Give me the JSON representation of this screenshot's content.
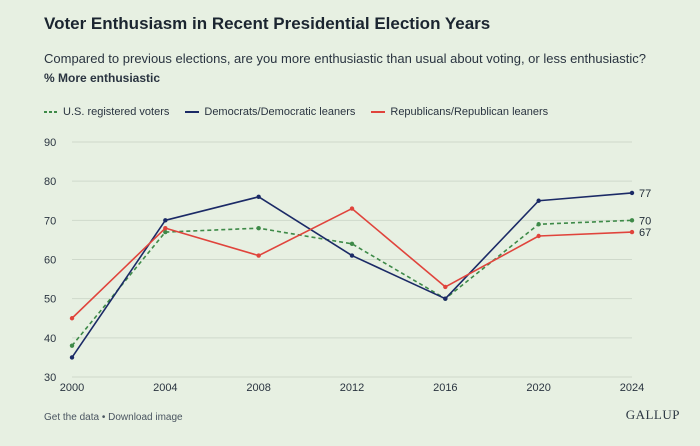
{
  "header": {
    "title": "Voter Enthusiasm in Recent Presidential Election Years",
    "subtitle": "Compared to previous elections, are you more enthusiastic than usual about voting, or less enthusiastic?",
    "measure": "% More enthusiastic"
  },
  "footer": {
    "get_data": "Get the data",
    "separator": "•",
    "download": "Download image",
    "brand": "GALLUP"
  },
  "chart_data": {
    "type": "line",
    "title": "Voter Enthusiasm in Recent Presidential Election Years",
    "subtitle": "Compared to previous elections, are you more enthusiastic than usual about voting, or less enthusiastic?",
    "ylabel": "% More enthusiastic",
    "xlabel": "",
    "x": [
      2000,
      2004,
      2008,
      2012,
      2016,
      2020,
      2024
    ],
    "ylim": [
      30,
      90
    ],
    "yticks": [
      30,
      40,
      50,
      60,
      70,
      80,
      90
    ],
    "grid": true,
    "legend_position": "top-left",
    "series": [
      {
        "name": "U.S. registered voters",
        "values": [
          38,
          67,
          68,
          64,
          50,
          69,
          70
        ],
        "color": "#3e8a48",
        "style": "dashed",
        "end_label": "70"
      },
      {
        "name": "Democrats/Democratic leaners",
        "values": [
          35,
          70,
          76,
          61,
          50,
          75,
          77
        ],
        "color": "#1b2a66",
        "style": "solid",
        "end_label": "77"
      },
      {
        "name": "Republicans/Republican leaners",
        "values": [
          45,
          68,
          61,
          73,
          53,
          66,
          67
        ],
        "color": "#e0443c",
        "style": "solid",
        "end_label": "67"
      }
    ]
  }
}
